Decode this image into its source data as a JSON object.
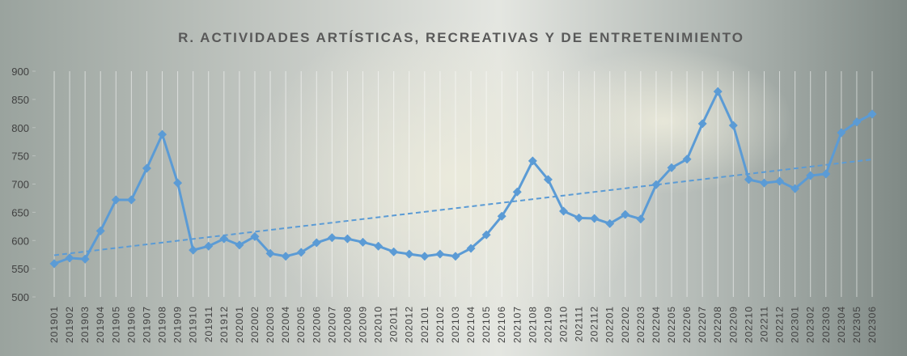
{
  "chart_data": {
    "type": "line",
    "title": "R. ACTIVIDADES ARTÍSTICAS, RECREATIVAS Y DE ENTRETENIMIENTO",
    "categories": [
      "201901",
      "201902",
      "201903",
      "201904",
      "201905",
      "201906",
      "201907",
      "201908",
      "201909",
      "201910",
      "201911",
      "201912",
      "202001",
      "202002",
      "202003",
      "202004",
      "202005",
      "202006",
      "202007",
      "202008",
      "202009",
      "202010",
      "202011",
      "202012",
      "202101",
      "202102",
      "202103",
      "202104",
      "202105",
      "202106",
      "202107",
      "202108",
      "202109",
      "202110",
      "202111",
      "202112",
      "202201",
      "202202",
      "202203",
      "202204",
      "202205",
      "202206",
      "202207",
      "202208",
      "202209",
      "202210",
      "202211",
      "202212",
      "202301",
      "202302",
      "202303",
      "202304",
      "202305",
      "202306"
    ],
    "series": [
      {
        "color": "#5b9bd5",
        "values": [
          559,
          569,
          567,
          617,
          672,
          672,
          728,
          788,
          702,
          583,
          590,
          603,
          592,
          607,
          577,
          572,
          579,
          596,
          605,
          603,
          597,
          590,
          580,
          576,
          572,
          576,
          572,
          586,
          610,
          643,
          686,
          741,
          708,
          652,
          640,
          639,
          630,
          646,
          638,
          699,
          729,
          744,
          807,
          864,
          804,
          708,
          702,
          705,
          692,
          715,
          718,
          791,
          810,
          824
        ]
      }
    ],
    "ylim": [
      500,
      900
    ],
    "yticks": [
      500,
      550,
      600,
      650,
      700,
      750,
      800,
      850,
      900
    ],
    "trendline": true,
    "grid": true
  }
}
